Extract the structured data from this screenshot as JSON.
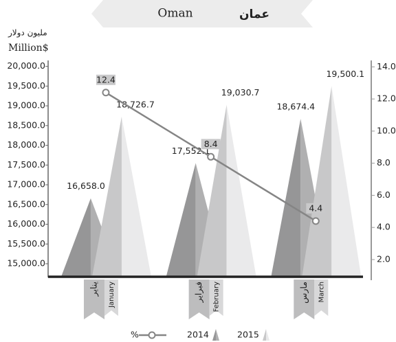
{
  "chart_data": {
    "type": "pyramid",
    "title": "Oman",
    "title_ar": "عمان",
    "y_label": "Million$",
    "y_label_ar": "مليون دولار",
    "categories": [
      "January",
      "February",
      "March"
    ],
    "categories_ar": [
      "يناير",
      "فبراير",
      "مارس"
    ],
    "series": [
      {
        "name": "2014",
        "color": "#a3a3a4",
        "values": [
          16658.0,
          17552.1,
          18674.4
        ],
        "value_labels": [
          "16,658.0",
          "17,552.1",
          "18,674.4"
        ]
      },
      {
        "name": "2015",
        "color": "#d9d9da",
        "values": [
          18726.7,
          19030.7,
          19500.1
        ],
        "value_labels": [
          "18,726.7",
          "19,030.7",
          "19,500.1"
        ]
      },
      {
        "name": "%",
        "type": "line",
        "axis": "y2",
        "color": "#858585",
        "values": [
          12.4,
          8.4,
          4.4
        ]
      }
    ],
    "ylim": [
      14670,
      20150
    ],
    "yticks": [
      {
        "value": 15000,
        "label": "15,000.0"
      },
      {
        "value": 15500,
        "label": "15,500.0"
      },
      {
        "value": 16000,
        "label": "16,000.0"
      },
      {
        "value": 16500,
        "label": "16,500.0"
      },
      {
        "value": 17000,
        "label": "17,000.0"
      },
      {
        "value": 17500,
        "label": "17,500.0"
      },
      {
        "value": 18000,
        "label": "18,000.0"
      },
      {
        "value": 18500,
        "label": "18,500.0"
      },
      {
        "value": 19000,
        "label": "19,000.0"
      },
      {
        "value": 19500,
        "label": "19,500.0"
      },
      {
        "value": 20000,
        "label": "20,000.0"
      }
    ],
    "y2lim": [
      0.93,
      14.4
    ],
    "y2ticks": [
      {
        "value": 2,
        "label": "2.0"
      },
      {
        "value": 4,
        "label": "4.0"
      },
      {
        "value": 6,
        "label": "6.0"
      },
      {
        "value": 8,
        "label": "8.0"
      },
      {
        "value": 10,
        "label": "10.0"
      },
      {
        "value": 12,
        "label": "12.0"
      },
      {
        "value": 14,
        "label": "14.0"
      }
    ],
    "grid": false
  }
}
